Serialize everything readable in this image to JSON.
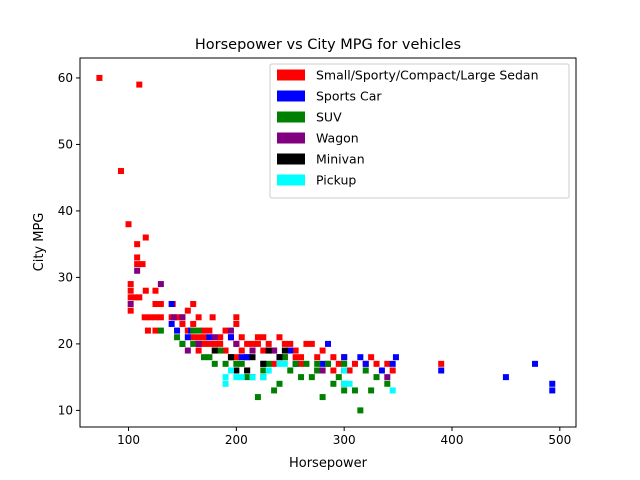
{
  "chart_data": {
    "type": "scatter",
    "title": "Horsepower vs City MPG for vehicles",
    "xlabel": "Horsepower",
    "ylabel": "City MPG",
    "xlim": [
      55,
      515
    ],
    "ylim": [
      7.5,
      63
    ],
    "xticks": [
      100,
      200,
      300,
      400,
      500
    ],
    "yticks": [
      10,
      20,
      30,
      40,
      50,
      60
    ],
    "grid": false,
    "legend_position": "top-right",
    "series": [
      {
        "name": "Small/Sporty/Compact/Large Sedan",
        "color": "#ff0000",
        "points": [
          [
            73,
            60
          ],
          [
            110,
            59
          ],
          [
            93,
            46
          ],
          [
            100,
            38
          ],
          [
            116,
            36
          ],
          [
            108,
            35
          ],
          [
            108,
            33
          ],
          [
            108,
            32
          ],
          [
            113,
            32
          ],
          [
            102,
            29
          ],
          [
            102,
            28
          ],
          [
            102,
            27
          ],
          [
            106,
            27
          ],
          [
            110,
            27
          ],
          [
            116,
            28
          ],
          [
            125,
            28
          ],
          [
            102,
            25
          ],
          [
            125,
            26
          ],
          [
            130,
            26
          ],
          [
            141,
            26
          ],
          [
            150,
            24
          ],
          [
            155,
            25
          ],
          [
            160,
            26
          ],
          [
            115,
            24
          ],
          [
            120,
            24
          ],
          [
            125,
            24
          ],
          [
            130,
            24
          ],
          [
            140,
            24
          ],
          [
            145,
            24
          ],
          [
            118,
            22
          ],
          [
            125,
            22
          ],
          [
            150,
            23
          ],
          [
            160,
            23
          ],
          [
            165,
            24
          ],
          [
            170,
            22
          ],
          [
            155,
            22
          ],
          [
            165,
            21
          ],
          [
            170,
            21
          ],
          [
            175,
            20
          ],
          [
            180,
            20
          ],
          [
            185,
            21
          ],
          [
            178,
            24
          ],
          [
            190,
            22
          ],
          [
            195,
            21
          ],
          [
            200,
            20
          ],
          [
            200,
            23
          ],
          [
            200,
            24
          ],
          [
            205,
            21
          ],
          [
            205,
            19
          ],
          [
            210,
            20
          ],
          [
            215,
            20
          ],
          [
            220,
            20
          ],
          [
            225,
            19
          ],
          [
            185,
            20
          ],
          [
            190,
            19
          ],
          [
            195,
            18
          ],
          [
            200,
            18
          ],
          [
            210,
            18
          ],
          [
            215,
            19
          ],
          [
            220,
            21
          ],
          [
            225,
            21
          ],
          [
            230,
            20
          ],
          [
            235,
            19
          ],
          [
            240,
            21
          ],
          [
            245,
            20
          ],
          [
            250,
            20
          ],
          [
            255,
            19
          ],
          [
            260,
            18
          ],
          [
            265,
            20
          ],
          [
            270,
            20
          ],
          [
            275,
            18
          ],
          [
            280,
            19
          ],
          [
            285,
            17
          ],
          [
            290,
            18
          ],
          [
            295,
            17
          ],
          [
            300,
            18
          ],
          [
            305,
            16
          ],
          [
            310,
            17
          ],
          [
            320,
            17
          ],
          [
            325,
            18
          ],
          [
            330,
            17
          ],
          [
            340,
            17
          ],
          [
            345,
            16
          ],
          [
            235,
            17
          ],
          [
            245,
            18
          ],
          [
            255,
            18
          ],
          [
            260,
            17
          ],
          [
            275,
            16
          ],
          [
            290,
            16
          ],
          [
            390,
            17
          ],
          [
            170,
            20
          ],
          [
            160,
            21
          ],
          [
            165,
            19
          ],
          [
            175,
            22
          ],
          [
            180,
            19
          ]
        ]
      },
      {
        "name": "Sports Car",
        "color": "#0000ff",
        "points": [
          [
            493,
            14
          ],
          [
            493,
            13
          ],
          [
            450,
            15
          ],
          [
            477,
            17
          ],
          [
            390,
            16
          ],
          [
            348,
            18
          ],
          [
            345,
            17
          ],
          [
            335,
            16
          ],
          [
            320,
            17
          ],
          [
            315,
            18
          ],
          [
            300,
            16
          ],
          [
            300,
            18
          ],
          [
            285,
            20
          ],
          [
            280,
            17
          ],
          [
            255,
            17
          ],
          [
            240,
            18
          ],
          [
            225,
            17
          ],
          [
            210,
            18
          ],
          [
            205,
            18
          ],
          [
            195,
            21
          ],
          [
            175,
            21
          ],
          [
            165,
            20
          ],
          [
            158,
            22
          ],
          [
            155,
            21
          ],
          [
            150,
            20
          ],
          [
            140,
            23
          ],
          [
            140,
            26
          ],
          [
            145,
            22
          ],
          [
            230,
            19
          ],
          [
            250,
            19
          ]
        ]
      },
      {
        "name": "SUV",
        "color": "#008000",
        "points": [
          [
            315,
            10
          ],
          [
            280,
            12
          ],
          [
            220,
            12
          ],
          [
            325,
            13
          ],
          [
            300,
            13
          ],
          [
            310,
            13
          ],
          [
            235,
            13
          ],
          [
            240,
            14
          ],
          [
            290,
            14
          ],
          [
            300,
            14
          ],
          [
            295,
            15
          ],
          [
            270,
            15
          ],
          [
            260,
            15
          ],
          [
            340,
            14
          ],
          [
            330,
            15
          ],
          [
            275,
            16
          ],
          [
            250,
            16
          ],
          [
            225,
            15
          ],
          [
            215,
            15
          ],
          [
            210,
            16
          ],
          [
            200,
            17
          ],
          [
            195,
            18
          ],
          [
            190,
            17
          ],
          [
            180,
            17
          ],
          [
            175,
            18
          ],
          [
            170,
            18
          ],
          [
            160,
            20
          ],
          [
            165,
            22
          ],
          [
            150,
            20
          ],
          [
            145,
            21
          ],
          [
            130,
            22
          ],
          [
            160,
            22
          ],
          [
            185,
            19
          ],
          [
            205,
            17
          ],
          [
            230,
            17
          ],
          [
            245,
            18
          ],
          [
            255,
            17
          ],
          [
            265,
            17
          ],
          [
            275,
            17
          ],
          [
            285,
            17
          ],
          [
            300,
            17
          ],
          [
            320,
            16
          ],
          [
            225,
            16
          ],
          [
            210,
            15
          ]
        ]
      },
      {
        "name": "Wagon",
        "color": "#800080",
        "points": [
          [
            108,
            31
          ],
          [
            102,
            26
          ],
          [
            130,
            29
          ],
          [
            142,
            24
          ],
          [
            150,
            24
          ],
          [
            155,
            19
          ],
          [
            165,
            20
          ],
          [
            180,
            21
          ],
          [
            195,
            22
          ],
          [
            200,
            20
          ],
          [
            215,
            19
          ],
          [
            235,
            19
          ],
          [
            280,
            16
          ],
          [
            340,
            15
          ]
        ]
      },
      {
        "name": "Minivan",
        "color": "#000000",
        "points": [
          [
            180,
            19
          ],
          [
            195,
            18
          ],
          [
            200,
            16
          ],
          [
            210,
            16
          ],
          [
            215,
            18
          ],
          [
            225,
            17
          ],
          [
            230,
            19
          ],
          [
            240,
            18
          ],
          [
            245,
            19
          ]
        ]
      },
      {
        "name": "Pickup",
        "color": "#00ffff",
        "points": [
          [
            190,
            14
          ],
          [
            190,
            15
          ],
          [
            195,
            16
          ],
          [
            200,
            15
          ],
          [
            205,
            15
          ],
          [
            215,
            15
          ],
          [
            225,
            15
          ],
          [
            230,
            16
          ],
          [
            240,
            17
          ],
          [
            245,
            17
          ],
          [
            300,
            14
          ],
          [
            305,
            14
          ],
          [
            345,
            13
          ],
          [
            300,
            16
          ]
        ]
      }
    ]
  }
}
